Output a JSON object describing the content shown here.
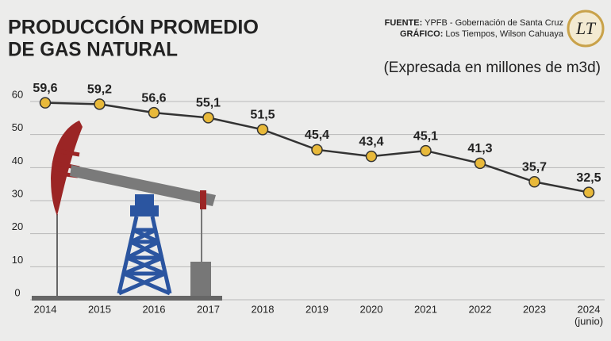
{
  "chart_data": {
    "type": "line",
    "title": [
      "PRODUCCIÓN PROMEDIO",
      "DE GAS NATURAL"
    ],
    "subtitle": "(Expresada en millones de m3d)",
    "source": {
      "label": "FUENTE:",
      "text": "YPFB - Gobernación de Santa Cruz"
    },
    "credit": {
      "label": "GRÁFICO:",
      "text": "Los Tiempos, Wilson Cahuaya"
    },
    "logo": "LT",
    "categories": [
      "2014",
      "2015",
      "2016",
      "2017",
      "2018",
      "2019",
      "2020",
      "2021",
      "2022",
      "2023",
      "2024"
    ],
    "category_note": "(junio)",
    "values": [
      59.6,
      59.2,
      56.6,
      55.1,
      51.5,
      45.4,
      43.4,
      45.1,
      41.3,
      35.7,
      32.5
    ],
    "value_labels": [
      "59,6",
      "59,2",
      "56,6",
      "55,1",
      "51,5",
      "45,4",
      "43,4",
      "45,1",
      "41,3",
      "35,7",
      "32,5"
    ],
    "color": "#333333",
    "marker_color": "#e8b93a",
    "ylim": [
      0,
      60
    ],
    "yticks": [
      0,
      10,
      20,
      30,
      40,
      50,
      60
    ],
    "grid": true
  }
}
